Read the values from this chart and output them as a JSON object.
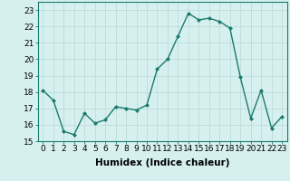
{
  "title": "",
  "xlabel": "Humidex (Indice chaleur)",
  "x": [
    0,
    1,
    2,
    3,
    4,
    5,
    6,
    7,
    8,
    9,
    10,
    11,
    12,
    13,
    14,
    15,
    16,
    17,
    18,
    19,
    20,
    21,
    22,
    23
  ],
  "y": [
    18.1,
    17.5,
    15.6,
    15.4,
    16.7,
    16.1,
    16.3,
    17.1,
    17.0,
    16.9,
    17.2,
    19.4,
    20.0,
    21.4,
    22.8,
    22.4,
    22.5,
    22.3,
    21.9,
    18.9,
    16.4,
    18.1,
    15.8,
    16.5
  ],
  "line_color": "#1a7a6e",
  "marker": "D",
  "markersize": 2.0,
  "linewidth": 1.0,
  "bg_color": "#d6f0ef",
  "grid_color": "#b8d8d4",
  "ylim": [
    15,
    23.5
  ],
  "xlim": [
    -0.5,
    23.5
  ],
  "yticks": [
    15,
    16,
    17,
    18,
    19,
    20,
    21,
    22,
    23
  ],
  "xticks": [
    0,
    1,
    2,
    3,
    4,
    5,
    6,
    7,
    8,
    9,
    10,
    11,
    12,
    13,
    14,
    15,
    16,
    17,
    18,
    19,
    20,
    21,
    22,
    23
  ],
  "tick_fontsize": 6.5,
  "xlabel_fontsize": 7.5,
  "spine_color": "#1a7a6e"
}
